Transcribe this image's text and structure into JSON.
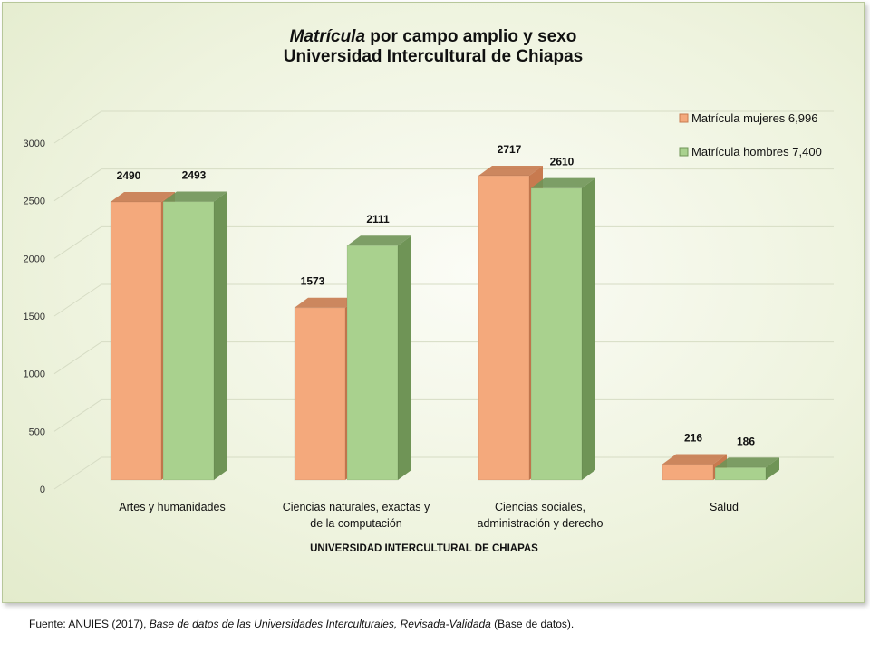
{
  "chart_data": {
    "type": "bar",
    "title_italic": "Matrícula",
    "title_rest": " por campo amplio y sexo",
    "subtitle": "Universidad Intercultural de Chiapas",
    "categories": [
      [
        "Artes y humanidades"
      ],
      [
        "Ciencias naturales, exactas y",
        "de la computación"
      ],
      [
        "Ciencias sociales,",
        "administración y derecho"
      ],
      [
        "Salud"
      ]
    ],
    "series": [
      {
        "name": "Matrícula mujeres 6,996",
        "values": [
          2490,
          1573,
          2717,
          216
        ],
        "color": "#f4a97c",
        "side_color": "#c87a4f"
      },
      {
        "name": "Matrícula hombres 7,400",
        "values": [
          2493,
          2111,
          2610,
          186
        ],
        "color": "#a9d18e",
        "side_color": "#6f9456"
      }
    ],
    "xlabel": "UNIVERSIDAD INTERCULTURAL DE CHIAPAS",
    "ylabel": "",
    "ylim": [
      0,
      3000
    ],
    "yticks": [
      0,
      500,
      1000,
      1500,
      2000,
      2500,
      3000
    ],
    "grid": true,
    "legend": "top-right",
    "data_labels": true
  },
  "source": {
    "prefix": "Fuente: ANUIES (2017), ",
    "italic": "Base de datos de las Universidades  Interculturales, Revisada-Validada",
    "suffix": "  (Base de datos)."
  }
}
